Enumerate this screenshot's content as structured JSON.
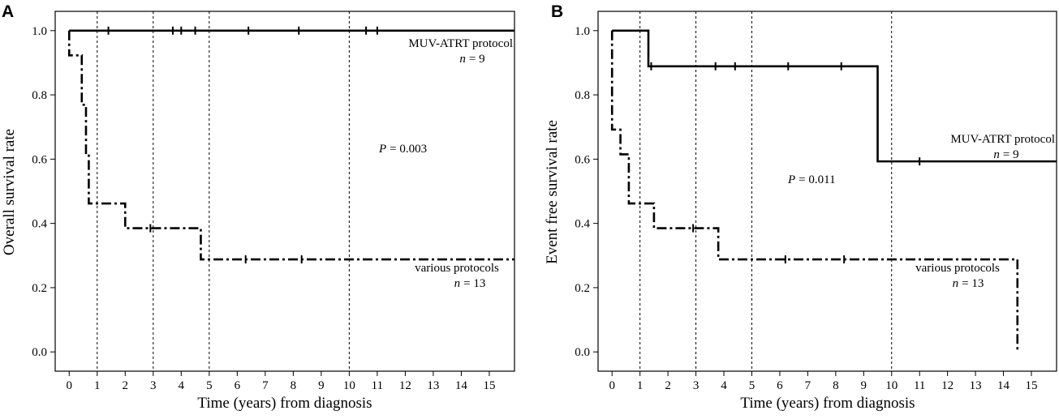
{
  "chart_data": [
    {
      "panel": "A",
      "type": "line",
      "title": "",
      "xlabel": "Time (years) from diagnosis",
      "ylabel": "Overall survival rate",
      "xlim": [
        -0.5,
        15.9
      ],
      "ylim": [
        -0.06,
        1.06
      ],
      "x_ticks": [
        "0",
        "1",
        "2",
        "3",
        "4",
        "5",
        "6",
        "7",
        "8",
        "9",
        "10",
        "11",
        "12",
        "13",
        "14",
        "15"
      ],
      "y_ticks": [
        "0.0",
        "0.2",
        "0.4",
        "0.6",
        "0.8",
        "1.0"
      ],
      "vlines": [
        1,
        3,
        5,
        10
      ],
      "p_value": {
        "prefix": "P",
        "value": "= 0.003"
      },
      "series": [
        {
          "name": "MUV-ATRT protocol",
          "n_label": "n",
          "n_value": "= 9",
          "style": "solid",
          "steps": [
            [
              0,
              1.0
            ],
            [
              15.9,
              1.0
            ]
          ],
          "censor": [
            1.4,
            3.7,
            4.0,
            4.5,
            6.4,
            8.2,
            10.6,
            11.0
          ]
        },
        {
          "name": "various protocols",
          "n_label": "n",
          "n_value": "= 13",
          "style": "dashdot",
          "steps": [
            [
              0,
              0.923
            ],
            [
              0.45,
              0.769
            ],
            [
              0.6,
              0.615
            ],
            [
              0.7,
              0.462
            ],
            [
              2.0,
              0.385
            ],
            [
              4.7,
              0.288
            ],
            [
              15.9,
              0.288
            ]
          ],
          "censor": [
            2.9,
            6.3,
            8.3
          ]
        }
      ]
    },
    {
      "panel": "B",
      "type": "line",
      "title": "",
      "xlabel": "Time (years) from diagnosis",
      "ylabel": "Event free survival rate",
      "xlim": [
        -0.5,
        15.9
      ],
      "ylim": [
        -0.06,
        1.06
      ],
      "x_ticks": [
        "0",
        "1",
        "2",
        "3",
        "4",
        "5",
        "6",
        "7",
        "8",
        "9",
        "10",
        "11",
        "12",
        "13",
        "14",
        "15"
      ],
      "y_ticks": [
        "0.0",
        "0.2",
        "0.4",
        "0.6",
        "0.8",
        "1.0"
      ],
      "vlines": [
        1,
        3,
        5,
        10
      ],
      "p_value": {
        "prefix": "P",
        "value": "= 0.011"
      },
      "series": [
        {
          "name": "MUV-ATRT protocol",
          "n_label": "n",
          "n_value": "= 9",
          "style": "solid",
          "steps": [
            [
              0,
              1.0
            ],
            [
              1.3,
              0.889
            ],
            [
              9.5,
              0.593
            ],
            [
              15.9,
              0.593
            ]
          ],
          "censor": [
            1.4,
            3.7,
            4.4,
            6.3,
            8.2,
            11.0
          ]
        },
        {
          "name": "various protocols",
          "n_label": "n",
          "n_value": "= 13",
          "style": "dashdot",
          "steps": [
            [
              0,
              0.692
            ],
            [
              0.3,
              0.615
            ],
            [
              0.6,
              0.462
            ],
            [
              1.5,
              0.385
            ],
            [
              3.8,
              0.288
            ],
            [
              14.5,
              0.288
            ],
            [
              14.5,
              0.0
            ]
          ],
          "censor": [
            2.9,
            6.2,
            8.3
          ]
        }
      ]
    }
  ]
}
